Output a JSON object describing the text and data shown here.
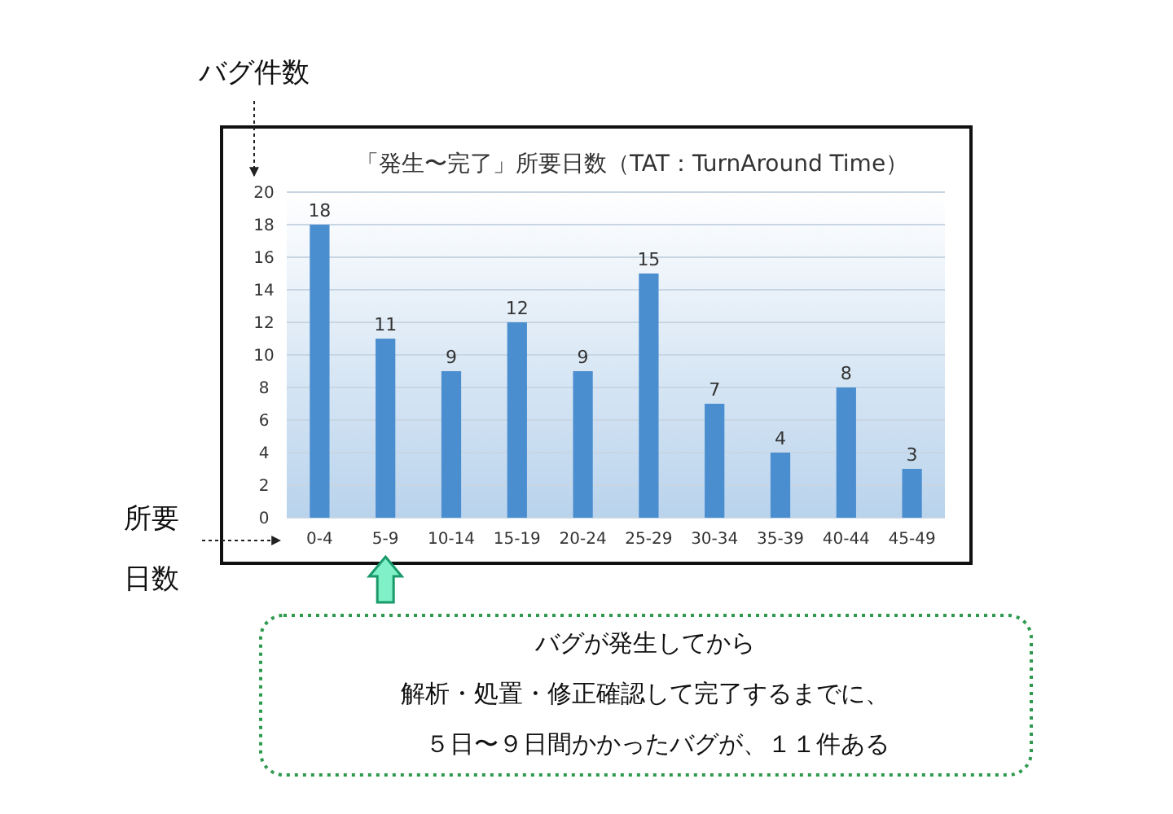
{
  "chart_data": {
    "type": "bar",
    "title": "「発生〜完了」所要日数（TAT：TurnAround Time）",
    "xlabel": "所要日数",
    "ylabel": "バグ件数",
    "categories": [
      "0-4",
      "5-9",
      "10-14",
      "15-19",
      "20-24",
      "25-29",
      "30-34",
      "35-39",
      "40-44",
      "45-49"
    ],
    "values": [
      18,
      11,
      9,
      12,
      9,
      15,
      7,
      4,
      8,
      3
    ],
    "color": "#4a8ed0",
    "ylim": [
      0,
      20
    ],
    "yticks": [
      0,
      2,
      4,
      6,
      8,
      10,
      12,
      14,
      16,
      18,
      20
    ],
    "grid": "y",
    "data_labels": true,
    "annotations": [
      "バグが発生してから",
      "解析・処置・修正確認して完了するまでに、",
      "　５日〜９日間かかったバグが、１１件ある"
    ]
  }
}
